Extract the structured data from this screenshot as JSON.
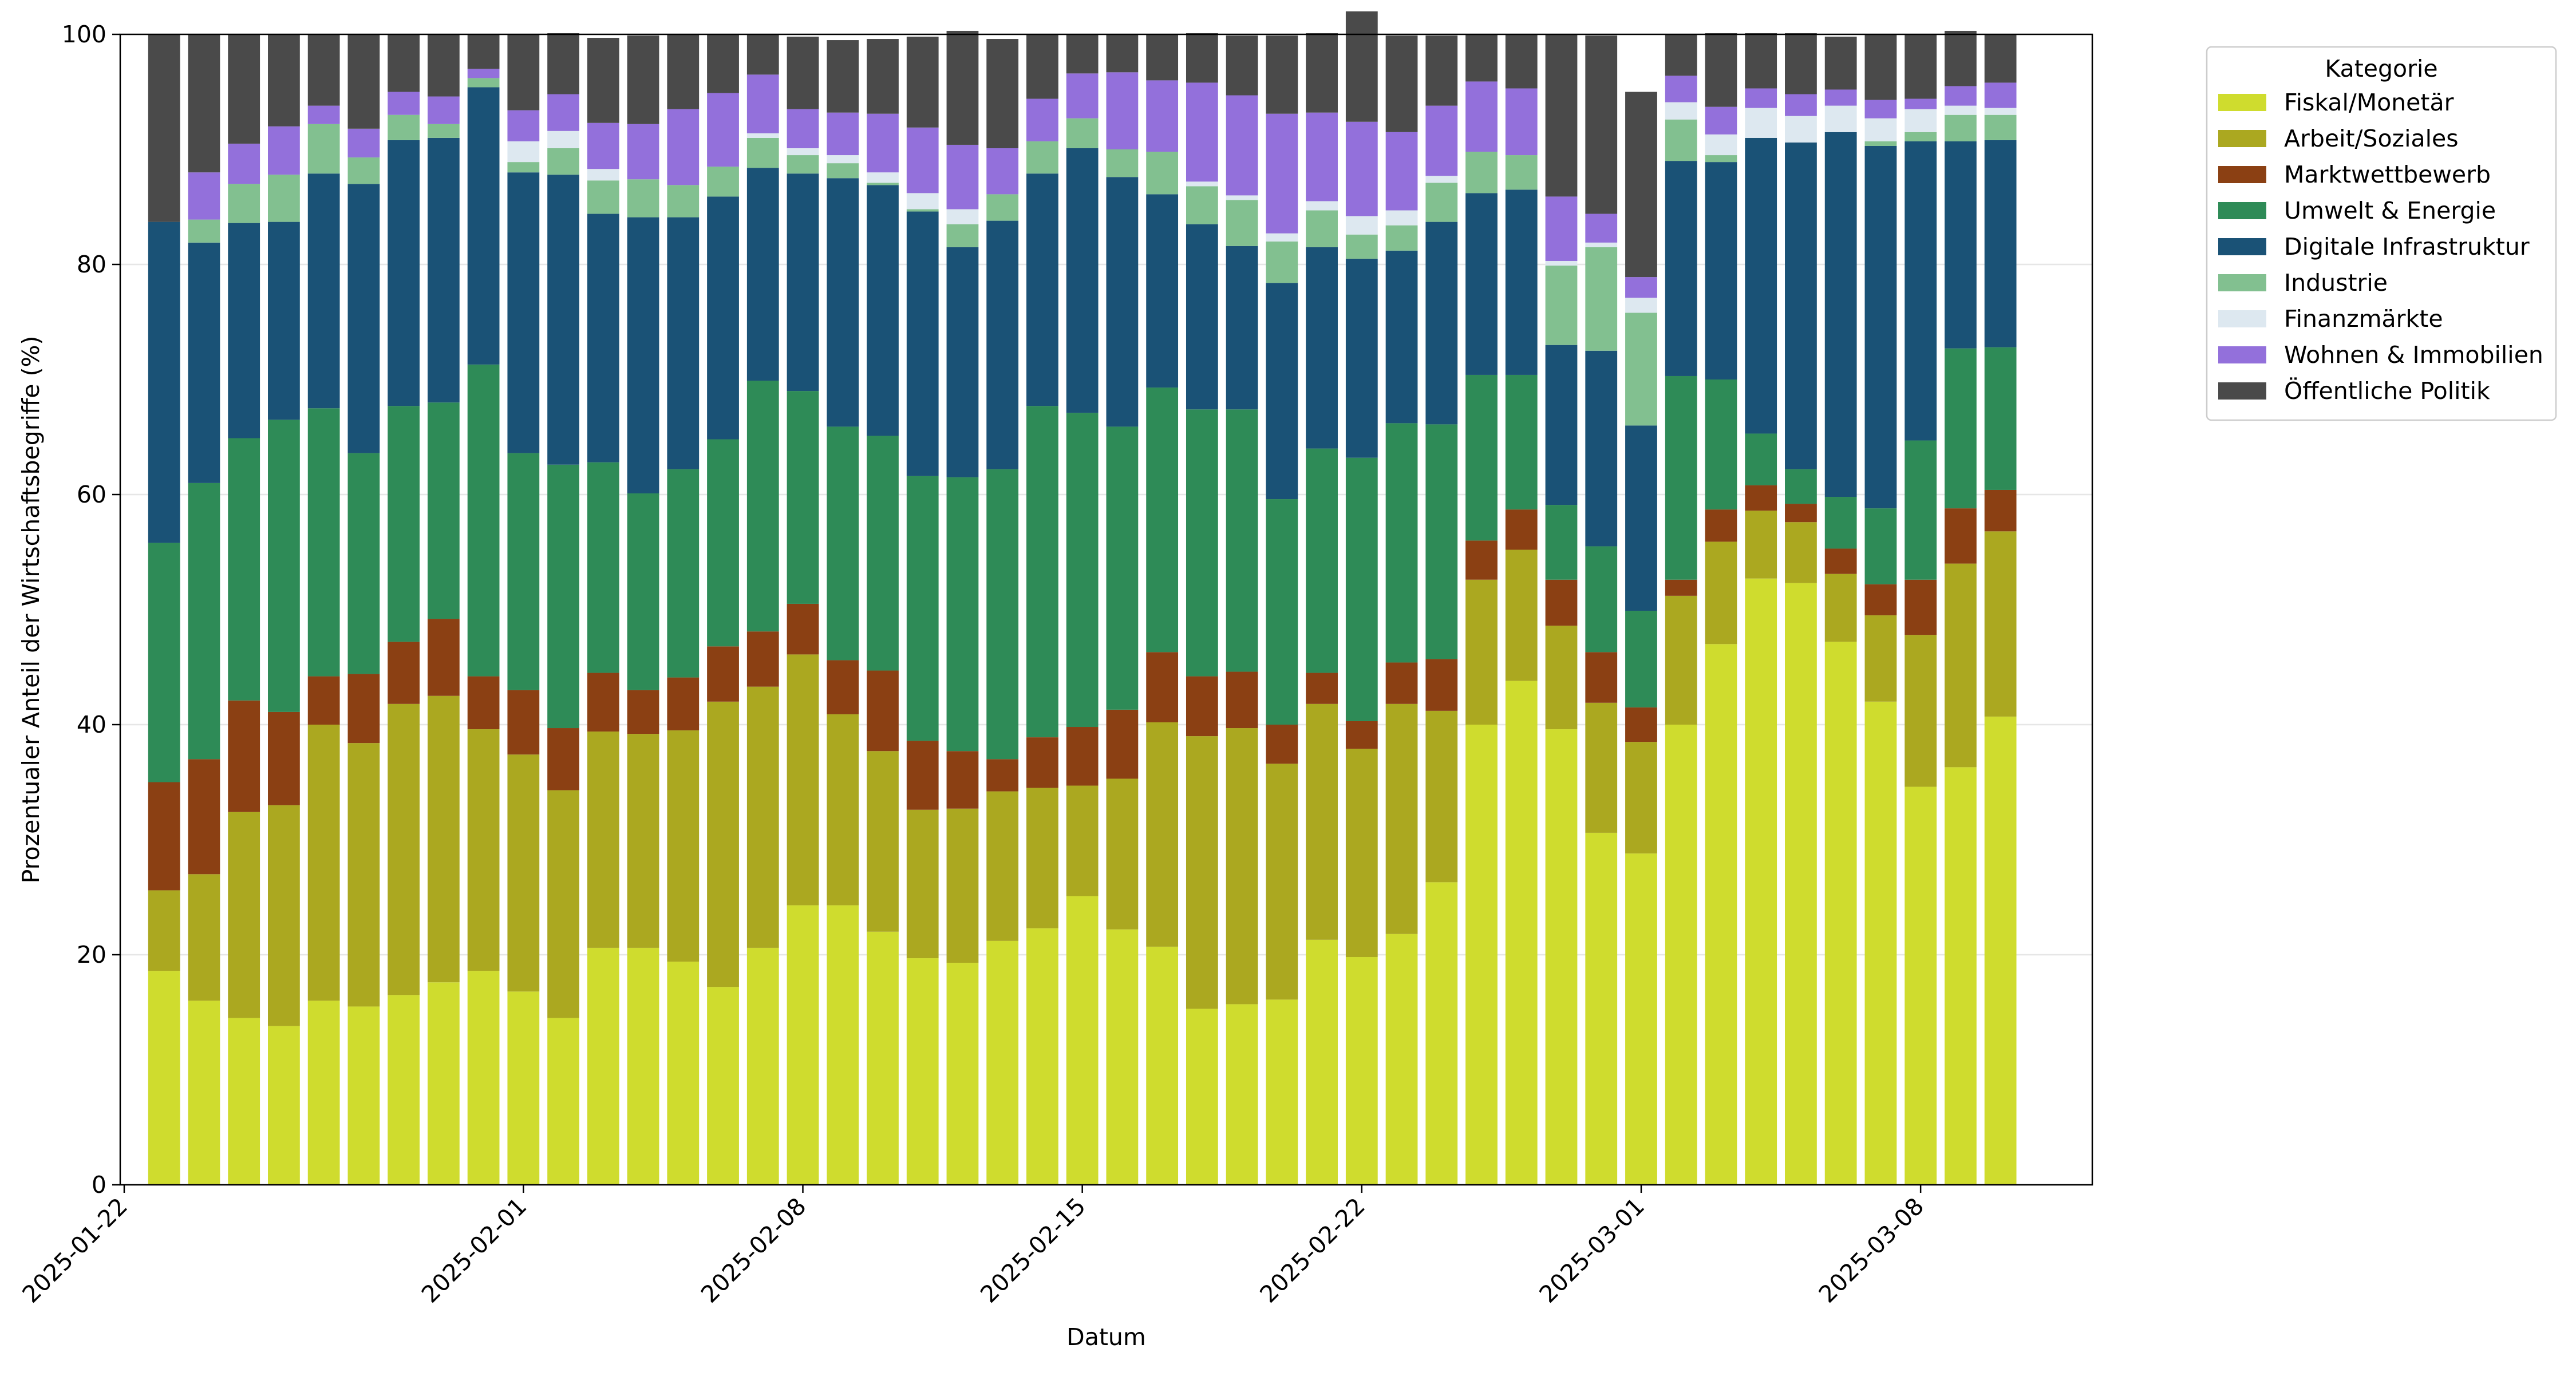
{
  "chart_data": {
    "type": "bar",
    "stacked": true,
    "xlabel": "Datum",
    "ylabel": "Prozentualer Anteil der Wirtschaftsbegriffe (%)",
    "ylim": [
      0,
      100
    ],
    "yticks": [
      0,
      20,
      40,
      60,
      80,
      100
    ],
    "xtick_labels": [
      "2025-01-22",
      "2025-02-01",
      "2025-02-08",
      "2025-02-15",
      "2025-02-22",
      "2025-03-01",
      "2025-03-08"
    ],
    "grid": "horizontal",
    "legend_title": "Kategorie",
    "legend_position": "outside-top-right",
    "x": [
      "2025-01-23",
      "2025-01-24",
      "2025-01-25",
      "2025-01-26",
      "2025-01-27",
      "2025-01-28",
      "2025-01-29",
      "2025-01-30",
      "2025-01-31",
      "2025-02-01",
      "2025-02-02",
      "2025-02-03",
      "2025-02-04",
      "2025-02-05",
      "2025-02-06",
      "2025-02-07",
      "2025-02-08",
      "2025-02-09",
      "2025-02-10",
      "2025-02-11",
      "2025-02-12",
      "2025-02-13",
      "2025-02-14",
      "2025-02-15",
      "2025-02-16",
      "2025-02-17",
      "2025-02-18",
      "2025-02-19",
      "2025-02-20",
      "2025-02-21",
      "2025-02-22",
      "2025-02-23",
      "2025-02-24",
      "2025-02-25",
      "2025-02-26",
      "2025-02-27",
      "2025-02-28",
      "2025-03-01",
      "2025-03-02",
      "2025-03-03",
      "2025-03-04",
      "2025-03-05",
      "2025-03-06",
      "2025-03-07",
      "2025-03-08",
      "2025-03-09",
      "2025-03-10"
    ],
    "series": [
      {
        "name": "Fiskal/Monetär",
        "color": "#cfdc2e",
        "values": [
          18.6,
          16.0,
          14.5,
          13.8,
          16.0,
          15.5,
          16.5,
          17.6,
          18.6,
          16.8,
          14.5,
          20.6,
          20.6,
          19.4,
          17.2,
          20.6,
          24.3,
          24.3,
          22.0,
          19.7,
          19.3,
          21.2,
          22.3,
          25.1,
          22.2,
          20.7,
          15.3,
          15.7,
          16.1,
          21.3,
          19.8,
          21.8,
          26.3,
          40.0,
          43.8,
          39.6,
          30.6,
          28.8,
          40.0,
          47.0,
          52.7,
          52.3,
          47.2,
          42.0,
          34.6,
          36.3,
          40.7
        ]
      },
      {
        "name": "Arbeit/Soziales",
        "color": "#aba820",
        "values": [
          7.0,
          11.0,
          17.9,
          19.2,
          24.0,
          22.9,
          25.3,
          24.9,
          21.0,
          20.6,
          19.8,
          18.8,
          18.6,
          20.1,
          24.8,
          22.7,
          21.8,
          16.6,
          15.7,
          12.9,
          13.4,
          13.0,
          12.2,
          9.6,
          13.1,
          19.5,
          23.7,
          24.0,
          20.5,
          20.5,
          18.1,
          20.0,
          14.9,
          12.6,
          11.4,
          9.0,
          11.3,
          9.7,
          11.2,
          8.9,
          5.9,
          5.3,
          5.9,
          7.5,
          13.2,
          17.7,
          16.1
        ]
      },
      {
        "name": "Marktwettbewerb",
        "color": "#8b4013",
        "values": [
          9.4,
          10.0,
          9.7,
          8.1,
          4.2,
          6.0,
          5.4,
          6.7,
          4.6,
          5.6,
          5.4,
          5.1,
          3.8,
          4.6,
          4.8,
          4.8,
          4.4,
          4.7,
          7.0,
          6.0,
          5.0,
          2.8,
          4.4,
          5.1,
          6.0,
          6.1,
          5.2,
          4.9,
          3.4,
          2.7,
          2.4,
          3.6,
          4.5,
          3.4,
          3.5,
          4.0,
          4.4,
          3.0,
          1.4,
          2.8,
          2.2,
          1.6,
          2.2,
          2.7,
          4.8,
          4.8,
          3.6
        ]
      },
      {
        "name": "Umwelt & Energie",
        "color": "#2e8b57",
        "values": [
          20.8,
          24.0,
          22.8,
          25.4,
          23.3,
          19.2,
          20.5,
          18.8,
          27.1,
          20.6,
          22.9,
          18.3,
          17.1,
          18.1,
          18.0,
          21.8,
          18.5,
          20.3,
          20.4,
          23.0,
          23.8,
          25.2,
          28.8,
          27.3,
          24.6,
          23.0,
          23.2,
          22.8,
          19.6,
          19.5,
          22.9,
          20.8,
          20.4,
          14.4,
          11.7,
          6.5,
          9.2,
          8.4,
          17.7,
          11.3,
          4.5,
          3.0,
          4.5,
          6.6,
          12.1,
          13.9,
          12.4
        ]
      },
      {
        "name": "Digitale Infrastruktur",
        "color": "#1a5276",
        "values": [
          27.9,
          20.9,
          18.7,
          17.2,
          20.4,
          23.4,
          23.1,
          23.0,
          24.1,
          24.4,
          25.2,
          21.6,
          24.0,
          21.9,
          21.1,
          18.5,
          18.9,
          21.6,
          21.8,
          23.0,
          20.0,
          21.6,
          20.2,
          23.0,
          21.7,
          16.8,
          16.1,
          14.2,
          18.8,
          17.5,
          17.3,
          15.0,
          17.6,
          15.8,
          16.1,
          13.9,
          17.0,
          16.1,
          18.7,
          18.9,
          25.7,
          28.4,
          31.7,
          31.5,
          26.0,
          18.0,
          18.0
        ]
      },
      {
        "name": "Industrie",
        "color": "#82c090",
        "values": [
          0.0,
          2.0,
          3.4,
          4.1,
          4.3,
          2.3,
          2.2,
          1.2,
          0.8,
          0.9,
          2.3,
          2.9,
          3.3,
          2.8,
          2.6,
          2.6,
          1.6,
          1.3,
          0.2,
          0.2,
          2.0,
          2.3,
          2.8,
          2.6,
          2.4,
          3.7,
          3.3,
          4.0,
          3.6,
          3.2,
          2.1,
          2.2,
          3.4,
          3.6,
          3.0,
          6.9,
          9.0,
          9.8,
          3.6,
          0.6,
          0.0,
          0.0,
          0.0,
          0.4,
          0.8,
          2.3,
          2.2
        ]
      },
      {
        "name": "Finanzmärkte",
        "color": "#dde8f0",
        "values": [
          0.0,
          0.0,
          0.0,
          0.0,
          0.0,
          0.0,
          0.0,
          0.0,
          0.0,
          1.8,
          1.5,
          1.0,
          0.0,
          0.0,
          0.0,
          0.4,
          0.6,
          0.7,
          0.9,
          1.4,
          1.3,
          0.0,
          0.0,
          0.0,
          0.0,
          0.0,
          0.4,
          0.4,
          0.7,
          0.8,
          1.6,
          1.3,
          0.6,
          0.0,
          0.0,
          0.4,
          0.4,
          1.3,
          1.5,
          1.8,
          2.6,
          2.3,
          2.3,
          2.0,
          2.0,
          0.8,
          0.6
        ]
      },
      {
        "name": "Wohnen & Immobilien",
        "color": "#9370db",
        "values": [
          0.0,
          4.1,
          3.5,
          4.2,
          1.6,
          2.5,
          2.0,
          2.4,
          0.8,
          2.7,
          3.2,
          4.0,
          4.8,
          6.6,
          6.4,
          5.1,
          3.4,
          3.7,
          5.1,
          5.7,
          5.6,
          4.0,
          3.7,
          3.9,
          6.7,
          6.2,
          8.6,
          8.7,
          10.4,
          7.7,
          8.2,
          6.8,
          6.1,
          6.1,
          5.8,
          5.6,
          2.5,
          1.8,
          2.3,
          2.4,
          1.7,
          1.9,
          1.4,
          1.6,
          0.9,
          1.7,
          2.2
        ]
      },
      {
        "name": "Öffentliche Politik",
        "color": "#4a4a4a",
        "values": [
          16.3,
          12.0,
          9.5,
          8.0,
          6.2,
          8.2,
          5.0,
          5.4,
          3.0,
          6.6,
          5.3,
          7.4,
          7.7,
          6.5,
          5.1,
          3.5,
          6.3,
          6.3,
          6.5,
          7.9,
          9.9,
          9.5,
          5.6,
          3.4,
          3.3,
          4.0,
          4.3,
          5.2,
          6.8,
          6.9,
          9.6,
          8.4,
          6.1,
          4.1,
          4.7,
          14.1,
          15.5,
          16.1,
          3.6,
          6.4,
          4.8,
          5.3,
          4.6,
          5.7,
          5.6,
          4.8,
          4.2
        ]
      }
    ]
  }
}
